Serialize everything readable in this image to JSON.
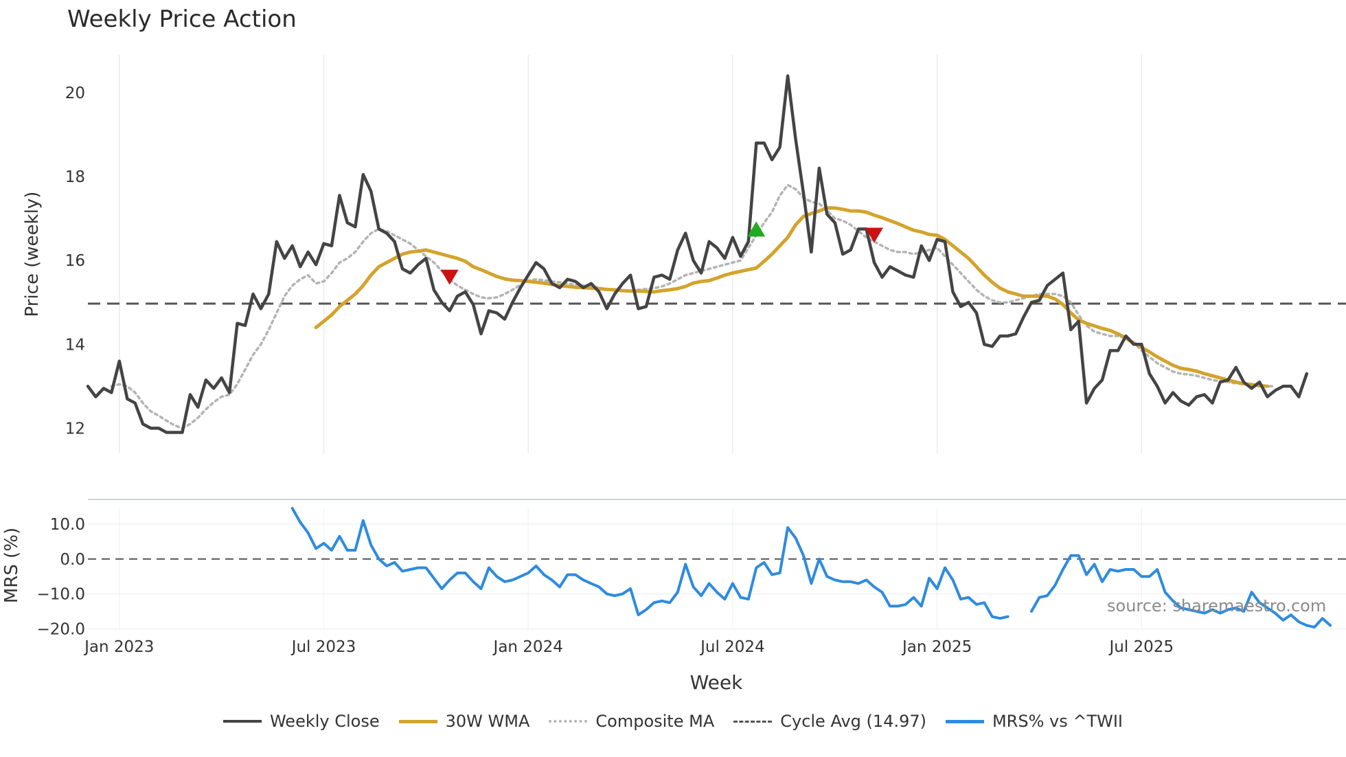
{
  "chart_data": [
    {
      "type": "line",
      "title": "Weekly Price Action",
      "xlabel": "Week",
      "ylabel": "Price (weekly)",
      "ylim": [
        11.4,
        20.9
      ],
      "yticks": [
        12,
        14,
        16,
        18,
        20
      ],
      "xtick_labels": [
        "Jan 2023",
        "Jul 2023",
        "Jan 2024",
        "Jul 2024",
        "Jan 2025",
        "Jul 2025"
      ],
      "xtick_weeks": [
        4,
        30,
        56,
        82,
        108,
        134
      ],
      "cycle_avg": 14.97,
      "series": [
        {
          "name": "Weekly Close",
          "color": "#444444",
          "start_week": 0,
          "values": [
            13.0,
            12.75,
            12.95,
            12.85,
            13.6,
            12.7,
            12.6,
            12.1,
            12.0,
            12.0,
            11.9,
            11.9,
            11.9,
            12.8,
            12.5,
            13.15,
            12.95,
            13.2,
            12.85,
            14.5,
            14.45,
            15.2,
            14.85,
            15.2,
            16.45,
            16.05,
            16.35,
            15.85,
            16.2,
            15.9,
            16.4,
            16.35,
            17.55,
            16.9,
            16.8,
            18.05,
            17.65,
            16.75,
            16.65,
            16.45,
            15.8,
            15.7,
            15.9,
            16.05,
            15.3,
            15.0,
            14.8,
            15.15,
            15.25,
            14.95,
            14.25,
            14.8,
            14.75,
            14.6,
            15.0,
            15.35,
            15.65,
            15.95,
            15.8,
            15.45,
            15.35,
            15.55,
            15.5,
            15.35,
            15.45,
            15.25,
            14.85,
            15.2,
            15.45,
            15.65,
            14.85,
            14.9,
            15.6,
            15.65,
            15.55,
            16.25,
            16.65,
            16.0,
            15.7,
            16.45,
            16.3,
            16.05,
            16.55,
            16.1,
            16.45,
            18.8,
            18.8,
            18.4,
            18.7,
            20.4,
            18.9,
            17.6,
            16.2,
            18.2,
            17.1,
            16.9,
            16.15,
            16.25,
            16.75,
            16.75,
            15.95,
            15.6,
            15.85,
            15.75,
            15.65,
            15.6,
            16.35,
            16.0,
            16.5,
            16.45,
            15.25,
            14.9,
            15.0,
            14.75,
            14.0,
            13.95,
            14.2,
            14.2,
            14.25,
            14.65,
            15.0,
            15.05,
            15.4,
            15.55,
            15.7,
            14.35,
            14.55,
            12.6,
            12.95,
            13.15,
            13.85,
            13.85,
            14.2,
            14.0,
            14.0,
            13.3,
            13.0,
            12.6,
            12.85,
            12.65,
            12.55,
            12.75,
            12.8,
            12.6,
            13.1,
            13.15,
            13.45,
            13.1,
            12.95,
            13.1,
            12.75,
            12.9,
            13.0,
            13.0,
            12.75,
            13.3
          ]
        },
        {
          "name": "30W WMA",
          "color": "#d4a32b",
          "start_week": 29,
          "values": [
            14.4,
            14.55,
            14.7,
            14.9,
            15.05,
            15.2,
            15.4,
            15.65,
            15.85,
            15.95,
            16.05,
            16.15,
            16.2,
            16.22,
            16.25,
            16.2,
            16.15,
            16.1,
            16.05,
            15.98,
            15.85,
            15.78,
            15.7,
            15.62,
            15.56,
            15.53,
            15.52,
            15.5,
            15.48,
            15.46,
            15.43,
            15.4,
            15.38,
            15.36,
            15.35,
            15.34,
            15.33,
            15.31,
            15.3,
            15.28,
            15.27,
            15.27,
            15.26,
            15.25,
            15.28,
            15.3,
            15.33,
            15.38,
            15.46,
            15.5,
            15.52,
            15.58,
            15.65,
            15.7,
            15.74,
            15.78,
            15.82,
            15.98,
            16.15,
            16.35,
            16.55,
            16.85,
            17.05,
            17.12,
            17.18,
            17.25,
            17.25,
            17.22,
            17.18,
            17.18,
            17.15,
            17.08,
            17.02,
            16.95,
            16.88,
            16.8,
            16.72,
            16.68,
            16.62,
            16.6,
            16.5,
            16.35,
            16.2,
            16.05,
            15.85,
            15.65,
            15.48,
            15.34,
            15.25,
            15.2,
            15.15,
            15.15,
            15.15,
            15.15,
            15.08,
            14.95,
            14.75,
            14.58,
            14.5,
            14.44,
            14.38,
            14.33,
            14.25,
            14.15,
            14.03,
            13.93,
            13.82,
            13.7,
            13.6,
            13.5,
            13.43,
            13.4,
            13.36,
            13.3,
            13.25,
            13.2,
            13.15,
            13.1,
            13.06,
            13.04,
            13.02,
            13.0
          ]
        },
        {
          "name": "Composite MA",
          "color": "#b4b4b4",
          "start_week": 3,
          "values": [
            13.0,
            13.05,
            13.0,
            12.85,
            12.6,
            12.4,
            12.3,
            12.18,
            12.07,
            12.0,
            12.1,
            12.25,
            12.45,
            12.62,
            12.75,
            12.8,
            13.05,
            13.4,
            13.75,
            14.0,
            14.35,
            14.75,
            15.15,
            15.4,
            15.55,
            15.65,
            15.45,
            15.5,
            15.7,
            15.95,
            16.05,
            16.2,
            16.45,
            16.65,
            16.75,
            16.7,
            16.6,
            16.5,
            16.4,
            16.25,
            16.1,
            15.95,
            15.75,
            15.55,
            15.4,
            15.3,
            15.2,
            15.12,
            15.1,
            15.12,
            15.2,
            15.3,
            15.42,
            15.52,
            15.55,
            15.53,
            15.5,
            15.48,
            15.45,
            15.42,
            15.4,
            15.38,
            15.35,
            15.3,
            15.28,
            15.27,
            15.28,
            15.3,
            15.32,
            15.34,
            15.38,
            15.45,
            15.55,
            15.65,
            15.7,
            15.75,
            15.8,
            15.85,
            15.9,
            15.95,
            16.0,
            16.3,
            16.6,
            16.9,
            17.15,
            17.55,
            17.8,
            17.7,
            17.5,
            17.4,
            17.35,
            17.2,
            17.0,
            16.95,
            16.85,
            16.7,
            16.55,
            16.45,
            16.35,
            16.25,
            16.2,
            16.2,
            16.15,
            16.2,
            16.25,
            16.3,
            16.1,
            15.9,
            15.7,
            15.5,
            15.3,
            15.15,
            15.05,
            15.0,
            15.0,
            15.05,
            15.1,
            15.15,
            15.2,
            15.2,
            15.2,
            15.15,
            15.0,
            14.7,
            14.45,
            14.3,
            14.25,
            14.2,
            14.2,
            14.15,
            14.05,
            13.85,
            13.7,
            13.55,
            13.45,
            13.35,
            13.3,
            13.28,
            13.25,
            13.2,
            13.15,
            13.12,
            13.1,
            13.07,
            13.05,
            13.02,
            13.0,
            13.0,
            13.0
          ]
        },
        {
          "name": "Cycle Avg (14.97)",
          "color": "#555555",
          "constant": 14.97
        }
      ],
      "markers": [
        {
          "type": "sell",
          "week": 46,
          "value": 15.6,
          "color": "#cc1111"
        },
        {
          "type": "buy",
          "week": 85,
          "value": 16.75,
          "color": "#22aa22"
        },
        {
          "type": "sell",
          "week": 100,
          "value": 16.6,
          "color": "#cc1111"
        }
      ]
    },
    {
      "type": "line",
      "title": "",
      "xlabel": "Week",
      "ylabel": "MRS (%)",
      "ylim": [
        -20.3,
        14.5
      ],
      "yticks": [
        10.0,
        0.0,
        -10.0,
        -20.0
      ],
      "ytick_labels": [
        "10.0",
        "0.0",
        "−10.0",
        "−20.0"
      ],
      "zero_line": 0.0,
      "series": [
        {
          "name": "MRS% vs ^TWII",
          "color": "#2e8be0",
          "start_week": 26,
          "values": [
            14.5,
            10.5,
            7.5,
            3.0,
            4.5,
            2.5,
            6.5,
            2.5,
            2.5,
            11.0,
            4.0,
            0.0,
            -2.0,
            -1.0,
            -3.5,
            -3.0,
            -2.5,
            -2.5,
            -5.5,
            -8.5,
            -6.0,
            -4.0,
            -4.0,
            -6.5,
            -8.5,
            -2.5,
            -5.0,
            -6.5,
            -6.0,
            -5.0,
            -4.0,
            -2.0,
            -4.5,
            -6.0,
            -8.0,
            -4.5,
            -4.5,
            -6.0,
            -7.0,
            -8.0,
            -10.0,
            -10.5,
            -10.0,
            -8.5,
            -16.0,
            -14.5,
            -12.5,
            -12.0,
            -12.5,
            -9.5,
            -1.5,
            -8.0,
            -10.5,
            -7.0,
            -9.5,
            -11.5,
            -7.0,
            -11.0,
            -11.5,
            -2.5,
            -1.0,
            -4.5,
            -4.0,
            9.0,
            6.0,
            1.0,
            -7.0,
            0.0,
            -5.0,
            -6.0,
            -6.5,
            -6.5,
            -7.0,
            -6.0,
            -8.0,
            -9.5,
            -13.5,
            -13.5,
            -13.0,
            -11.0,
            -13.5,
            -5.5,
            -8.5,
            -2.5,
            -6.0,
            -11.5,
            -11.0,
            -13.0,
            -12.5,
            -16.5,
            -17.0,
            -16.5,
            null,
            null,
            -15.0,
            -11.0,
            -10.5,
            -7.5,
            -3.0,
            1.0,
            1.0,
            -4.5,
            -1.5,
            -6.5,
            -3.0,
            -3.5,
            -3.0,
            -3.0,
            -5.0,
            -5.0,
            -3.0,
            -9.5,
            -12.0,
            -14.0,
            -14.5,
            -15.0,
            -15.5,
            -14.5,
            -15.5,
            -14.5,
            -14.0,
            -15.0,
            -9.5,
            -12.5,
            -14.0,
            -15.5,
            -17.5,
            -16.0,
            -18.0,
            -19.0,
            -19.5,
            -17.0,
            -19.0
          ]
        }
      ]
    }
  ],
  "legend": {
    "items": [
      "Weekly Close",
      "30W WMA",
      "Composite MA",
      "Cycle Avg (14.97)",
      "MRS% vs ^TWII"
    ]
  },
  "source_note": "source: sharemaestro.com"
}
